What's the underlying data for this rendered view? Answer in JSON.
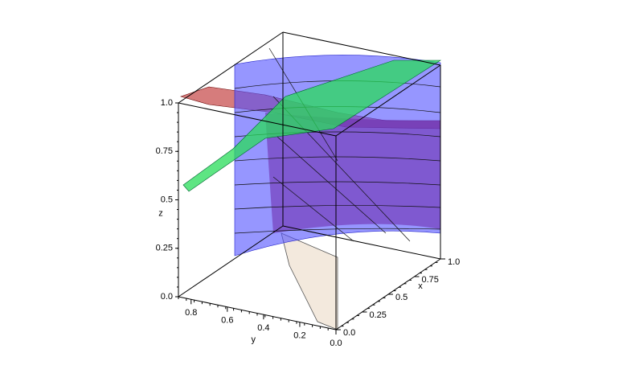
{
  "chart_data": {
    "type": "surface3d",
    "xlabel": "x",
    "ylabel": "y",
    "zlabel": "z",
    "xlim": [
      0,
      1
    ],
    "ylim": [
      0,
      0.87
    ],
    "zlim": [
      0,
      1
    ],
    "xticks": [
      {
        "value": 0,
        "label": "0.0"
      },
      0.25,
      0.5,
      0.75,
      {
        "value": 1,
        "label": "1.0"
      }
    ],
    "yticks": [
      {
        "value": 0,
        "label": "0.0"
      },
      0.2,
      0.4,
      0.6,
      0.8
    ],
    "zticks": [
      {
        "value": 0,
        "label": "0.0"
      },
      0.25,
      0.5,
      0.75,
      {
        "value": 1,
        "label": "1.0"
      }
    ]
  }
}
